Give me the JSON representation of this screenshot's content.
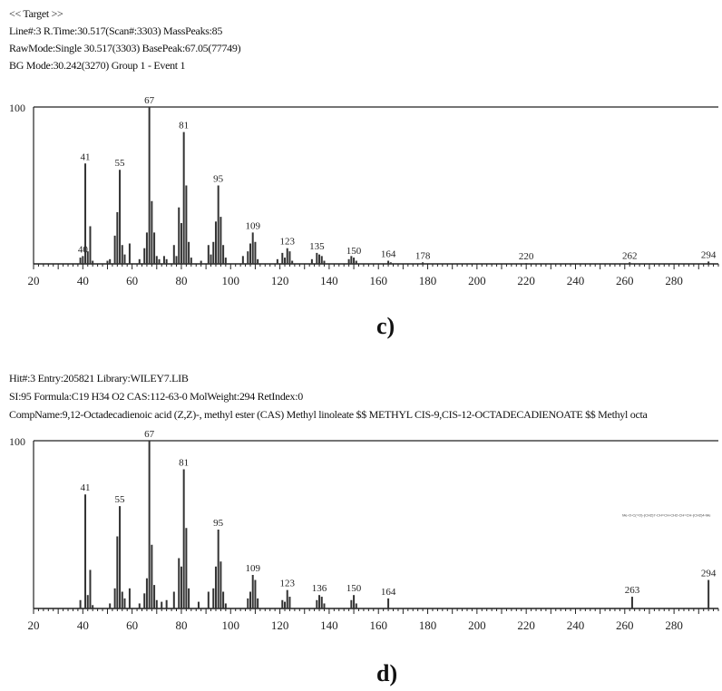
{
  "charts": [
    {
      "header": [
        "<< Target >>",
        "Line#:3  R.Time:30.517(Scan#:3303)  MassPeaks:85",
        "RawMode:Single 30.517(3303)  BasePeak:67.05(77749)",
        "BG Mode:30.242(3270)  Group 1 - Event 1"
      ],
      "panel_label": "c)",
      "y_max_label": "100"
    },
    {
      "header": [
        "Hit#:3  Entry:205821  Library:WILEY7.LIB",
        "SI:95  Formula:C19 H34 O2  CAS:112-63-0  MolWeight:294  RetIndex:0",
        "CompName:9,12-Octadecadienoic acid (Z,Z)-, methyl ester (CAS) Methyl linoleate $$ METHYL CIS-9,CIS-12-OCTADECADIENOATE $$ Methyl octa"
      ],
      "panel_label": "d)",
      "y_max_label": "100"
    }
  ],
  "chart_data": [
    {
      "type": "bar",
      "xlim": [
        20,
        298
      ],
      "ylim": [
        0,
        100
      ],
      "xticks": [
        20,
        40,
        60,
        80,
        100,
        120,
        140,
        160,
        180,
        200,
        220,
        240,
        260,
        280
      ],
      "peaks": [
        {
          "x": 39,
          "y": 4
        },
        {
          "x": 40,
          "y": 5
        },
        {
          "x": 41,
          "y": 64
        },
        {
          "x": 42,
          "y": 8
        },
        {
          "x": 43,
          "y": 24
        },
        {
          "x": 44,
          "y": 2
        },
        {
          "x": 50,
          "y": 2
        },
        {
          "x": 51,
          "y": 3
        },
        {
          "x": 53,
          "y": 18
        },
        {
          "x": 54,
          "y": 33
        },
        {
          "x": 55,
          "y": 60
        },
        {
          "x": 56,
          "y": 12
        },
        {
          "x": 57,
          "y": 6
        },
        {
          "x": 59,
          "y": 13
        },
        {
          "x": 63,
          "y": 3
        },
        {
          "x": 65,
          "y": 10
        },
        {
          "x": 66,
          "y": 20
        },
        {
          "x": 67,
          "y": 100
        },
        {
          "x": 68,
          "y": 40
        },
        {
          "x": 69,
          "y": 20
        },
        {
          "x": 70,
          "y": 5
        },
        {
          "x": 71,
          "y": 3
        },
        {
          "x": 73,
          "y": 5
        },
        {
          "x": 74,
          "y": 3
        },
        {
          "x": 77,
          "y": 12
        },
        {
          "x": 78,
          "y": 5
        },
        {
          "x": 79,
          "y": 36
        },
        {
          "x": 80,
          "y": 26
        },
        {
          "x": 81,
          "y": 84
        },
        {
          "x": 82,
          "y": 50
        },
        {
          "x": 83,
          "y": 14
        },
        {
          "x": 84,
          "y": 4
        },
        {
          "x": 88,
          "y": 2
        },
        {
          "x": 91,
          "y": 12
        },
        {
          "x": 92,
          "y": 6
        },
        {
          "x": 93,
          "y": 14
        },
        {
          "x": 94,
          "y": 27
        },
        {
          "x": 95,
          "y": 50
        },
        {
          "x": 96,
          "y": 30
        },
        {
          "x": 97,
          "y": 12
        },
        {
          "x": 98,
          "y": 4
        },
        {
          "x": 105,
          "y": 5
        },
        {
          "x": 107,
          "y": 8
        },
        {
          "x": 108,
          "y": 13
        },
        {
          "x": 109,
          "y": 20
        },
        {
          "x": 110,
          "y": 14
        },
        {
          "x": 111,
          "y": 3
        },
        {
          "x": 119,
          "y": 3
        },
        {
          "x": 121,
          "y": 7
        },
        {
          "x": 122,
          "y": 4
        },
        {
          "x": 123,
          "y": 10
        },
        {
          "x": 124,
          "y": 8
        },
        {
          "x": 125,
          "y": 2
        },
        {
          "x": 133,
          "y": 3
        },
        {
          "x": 135,
          "y": 7
        },
        {
          "x": 136,
          "y": 6
        },
        {
          "x": 137,
          "y": 5
        },
        {
          "x": 138,
          "y": 2
        },
        {
          "x": 148,
          "y": 3
        },
        {
          "x": 149,
          "y": 5
        },
        {
          "x": 150,
          "y": 4
        },
        {
          "x": 151,
          "y": 2
        },
        {
          "x": 164,
          "y": 2
        },
        {
          "x": 165,
          "y": 1
        },
        {
          "x": 178,
          "y": 1
        },
        {
          "x": 220,
          "y": 0.5
        },
        {
          "x": 262,
          "y": 1
        },
        {
          "x": 294,
          "y": 1.5
        }
      ],
      "peak_labels": [
        {
          "x": 40,
          "y": 5,
          "text": "40"
        },
        {
          "x": 41,
          "y": 64,
          "text": "41"
        },
        {
          "x": 55,
          "y": 60,
          "text": "55"
        },
        {
          "x": 67,
          "y": 100,
          "text": "67"
        },
        {
          "x": 81,
          "y": 84,
          "text": "81"
        },
        {
          "x": 95,
          "y": 50,
          "text": "95"
        },
        {
          "x": 109,
          "y": 20,
          "text": "109"
        },
        {
          "x": 123,
          "y": 10,
          "text": "123"
        },
        {
          "x": 135,
          "y": 7,
          "text": "135"
        },
        {
          "x": 150,
          "y": 4,
          "text": "150"
        },
        {
          "x": 164,
          "y": 2,
          "text": "164"
        },
        {
          "x": 178,
          "y": 1,
          "text": "178"
        },
        {
          "x": 220,
          "y": 0.5,
          "text": "220"
        },
        {
          "x": 262,
          "y": 1,
          "text": "262"
        },
        {
          "x": 294,
          "y": 1.5,
          "text": "294"
        }
      ]
    },
    {
      "type": "bar",
      "xlim": [
        20,
        298
      ],
      "ylim": [
        0,
        100
      ],
      "xticks": [
        20,
        40,
        60,
        80,
        100,
        120,
        140,
        160,
        180,
        200,
        220,
        240,
        260,
        280
      ],
      "structure_text": "Me-O-C(=O)-(CH2)7-CH=CH-CH2-CH=CH-(CH2)4-Me",
      "peaks": [
        {
          "x": 39,
          "y": 5
        },
        {
          "x": 41,
          "y": 68
        },
        {
          "x": 42,
          "y": 8
        },
        {
          "x": 43,
          "y": 23
        },
        {
          "x": 44,
          "y": 2
        },
        {
          "x": 51,
          "y": 3
        },
        {
          "x": 53,
          "y": 12
        },
        {
          "x": 54,
          "y": 43
        },
        {
          "x": 55,
          "y": 61
        },
        {
          "x": 56,
          "y": 10
        },
        {
          "x": 57,
          "y": 6
        },
        {
          "x": 59,
          "y": 12
        },
        {
          "x": 63,
          "y": 3
        },
        {
          "x": 65,
          "y": 9
        },
        {
          "x": 66,
          "y": 18
        },
        {
          "x": 67,
          "y": 100
        },
        {
          "x": 68,
          "y": 38
        },
        {
          "x": 69,
          "y": 14
        },
        {
          "x": 70,
          "y": 5
        },
        {
          "x": 72,
          "y": 4
        },
        {
          "x": 74,
          "y": 5
        },
        {
          "x": 77,
          "y": 10
        },
        {
          "x": 79,
          "y": 30
        },
        {
          "x": 80,
          "y": 25
        },
        {
          "x": 81,
          "y": 83
        },
        {
          "x": 82,
          "y": 48
        },
        {
          "x": 83,
          "y": 12
        },
        {
          "x": 87,
          "y": 4
        },
        {
          "x": 91,
          "y": 10
        },
        {
          "x": 93,
          "y": 12
        },
        {
          "x": 94,
          "y": 25
        },
        {
          "x": 95,
          "y": 47
        },
        {
          "x": 96,
          "y": 28
        },
        {
          "x": 97,
          "y": 10
        },
        {
          "x": 98,
          "y": 3
        },
        {
          "x": 107,
          "y": 6
        },
        {
          "x": 108,
          "y": 10
        },
        {
          "x": 109,
          "y": 20
        },
        {
          "x": 110,
          "y": 17
        },
        {
          "x": 111,
          "y": 6
        },
        {
          "x": 121,
          "y": 5
        },
        {
          "x": 122,
          "y": 4
        },
        {
          "x": 123,
          "y": 11
        },
        {
          "x": 124,
          "y": 7
        },
        {
          "x": 135,
          "y": 5
        },
        {
          "x": 136,
          "y": 8
        },
        {
          "x": 137,
          "y": 7
        },
        {
          "x": 138,
          "y": 3
        },
        {
          "x": 149,
          "y": 5
        },
        {
          "x": 150,
          "y": 8
        },
        {
          "x": 151,
          "y": 3
        },
        {
          "x": 164,
          "y": 6
        },
        {
          "x": 263,
          "y": 7
        },
        {
          "x": 294,
          "y": 17
        }
      ],
      "peak_labels": [
        {
          "x": 41,
          "y": 68,
          "text": "41"
        },
        {
          "x": 55,
          "y": 61,
          "text": "55"
        },
        {
          "x": 67,
          "y": 100,
          "text": "67"
        },
        {
          "x": 81,
          "y": 83,
          "text": "81"
        },
        {
          "x": 95,
          "y": 47,
          "text": "95"
        },
        {
          "x": 109,
          "y": 20,
          "text": "109"
        },
        {
          "x": 123,
          "y": 11,
          "text": "123"
        },
        {
          "x": 136,
          "y": 8,
          "text": "136"
        },
        {
          "x": 150,
          "y": 8,
          "text": "150"
        },
        {
          "x": 164,
          "y": 6,
          "text": "164"
        },
        {
          "x": 263,
          "y": 7,
          "text": "263"
        },
        {
          "x": 294,
          "y": 17,
          "text": "294"
        }
      ]
    }
  ]
}
